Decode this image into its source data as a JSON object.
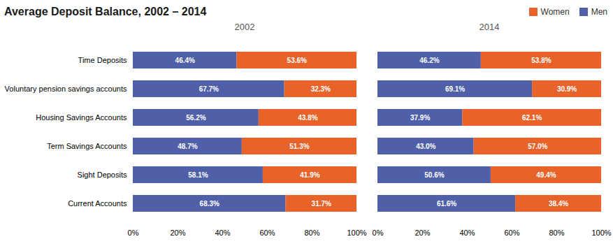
{
  "chart_data": [
    {
      "type": "bar",
      "title": "Average Deposit Balance, 2002 – 2014",
      "subtitle": "2002",
      "orientation": "horizontal",
      "stacked": true,
      "data_labels": true,
      "legend": "upper right",
      "grid": false,
      "categories": [
        "Time Deposits",
        "Voluntary pension savings accounts",
        "Housing Savings Accounts",
        "Term Savings Accounts",
        "Sight Deposits",
        "Current Accounts"
      ],
      "series": [
        {
          "name": "Men",
          "color": "#4f5fa8",
          "values": [
            46.4,
            67.7,
            56.2,
            48.7,
            58.1,
            68.3
          ],
          "value_labels": [
            "46.4%",
            "67.7%",
            "56.2%",
            "48.7%",
            "58.1%",
            "68.3%"
          ]
        },
        {
          "name": "Women",
          "color": "#e8632a",
          "values": [
            53.6,
            32.3,
            43.8,
            51.3,
            41.9,
            31.7
          ],
          "value_labels": [
            "53.6%",
            "32.3%",
            "43.8%",
            "51.3%",
            "41.9%",
            "31.7%"
          ]
        }
      ],
      "xlim": [
        0,
        100
      ],
      "xticks": [
        {
          "value": 0,
          "label": "0%"
        },
        {
          "value": 20,
          "label": "20%"
        },
        {
          "value": 40,
          "label": "40%"
        },
        {
          "value": 60,
          "label": "60%"
        },
        {
          "value": 80,
          "label": "80%"
        },
        {
          "value": 100,
          "label": "100%"
        }
      ]
    },
    {
      "type": "bar",
      "subtitle": "2014",
      "orientation": "horizontal",
      "stacked": true,
      "data_labels": true,
      "grid": false,
      "tick_labels": "x",
      "categories": [
        "Time Deposits",
        "Voluntary pension savings accounts",
        "Housing Savings Accounts",
        "Term Savings Accounts",
        "Sight Deposits",
        "Current Accounts"
      ],
      "series": [
        {
          "name": "Men",
          "color": "#4f5fa8",
          "values": [
            46.2,
            69.1,
            37.9,
            43.0,
            50.6,
            61.6
          ],
          "value_labels": [
            "46.2%",
            "69.1%",
            "37.9%",
            "43.0%",
            "50.6%",
            "61.6%"
          ]
        },
        {
          "name": "Women",
          "color": "#e8632a",
          "values": [
            53.8,
            30.9,
            62.1,
            57.0,
            49.4,
            38.4
          ],
          "value_labels": [
            "53.8%",
            "30.9%",
            "62.1%",
            "57.0%",
            "49.4%",
            "38.4%"
          ]
        }
      ],
      "xlim": [
        0,
        100
      ],
      "xticks": [
        {
          "value": 0,
          "label": "0%"
        },
        {
          "value": 20,
          "label": "20%"
        },
        {
          "value": 40,
          "label": "40%"
        },
        {
          "value": 60,
          "label": "60%"
        },
        {
          "value": 80,
          "label": "80%"
        },
        {
          "value": 100,
          "label": "100%"
        }
      ]
    }
  ]
}
